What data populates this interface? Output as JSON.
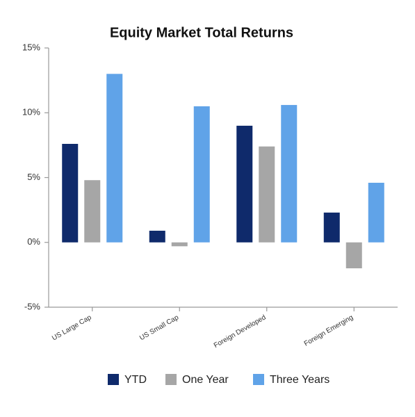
{
  "chart_data": {
    "type": "bar",
    "title": "Equity Market Total Returns",
    "categories": [
      "US Large Cap",
      "US Small Cap",
      "Foreign Developed",
      "Foreign Emerging"
    ],
    "series": [
      {
        "name": "YTD",
        "color": "#0f2a6b",
        "values": [
          7.6,
          0.9,
          9.0,
          2.3
        ]
      },
      {
        "name": "One Year",
        "color": "#a6a6a6",
        "values": [
          4.8,
          -0.3,
          7.4,
          -2.0
        ]
      },
      {
        "name": "Three Years",
        "color": "#60a3e8",
        "values": [
          13.0,
          10.5,
          10.6,
          4.6
        ]
      }
    ],
    "ylim": [
      -5,
      15
    ],
    "yticks": [
      {
        "value": -5,
        "label": "-5%"
      },
      {
        "value": 0,
        "label": "0%"
      },
      {
        "value": 5,
        "label": "5%"
      },
      {
        "value": 10,
        "label": "10%"
      },
      {
        "value": 15,
        "label": "15%"
      }
    ],
    "grid": false,
    "legend": "bottom"
  }
}
